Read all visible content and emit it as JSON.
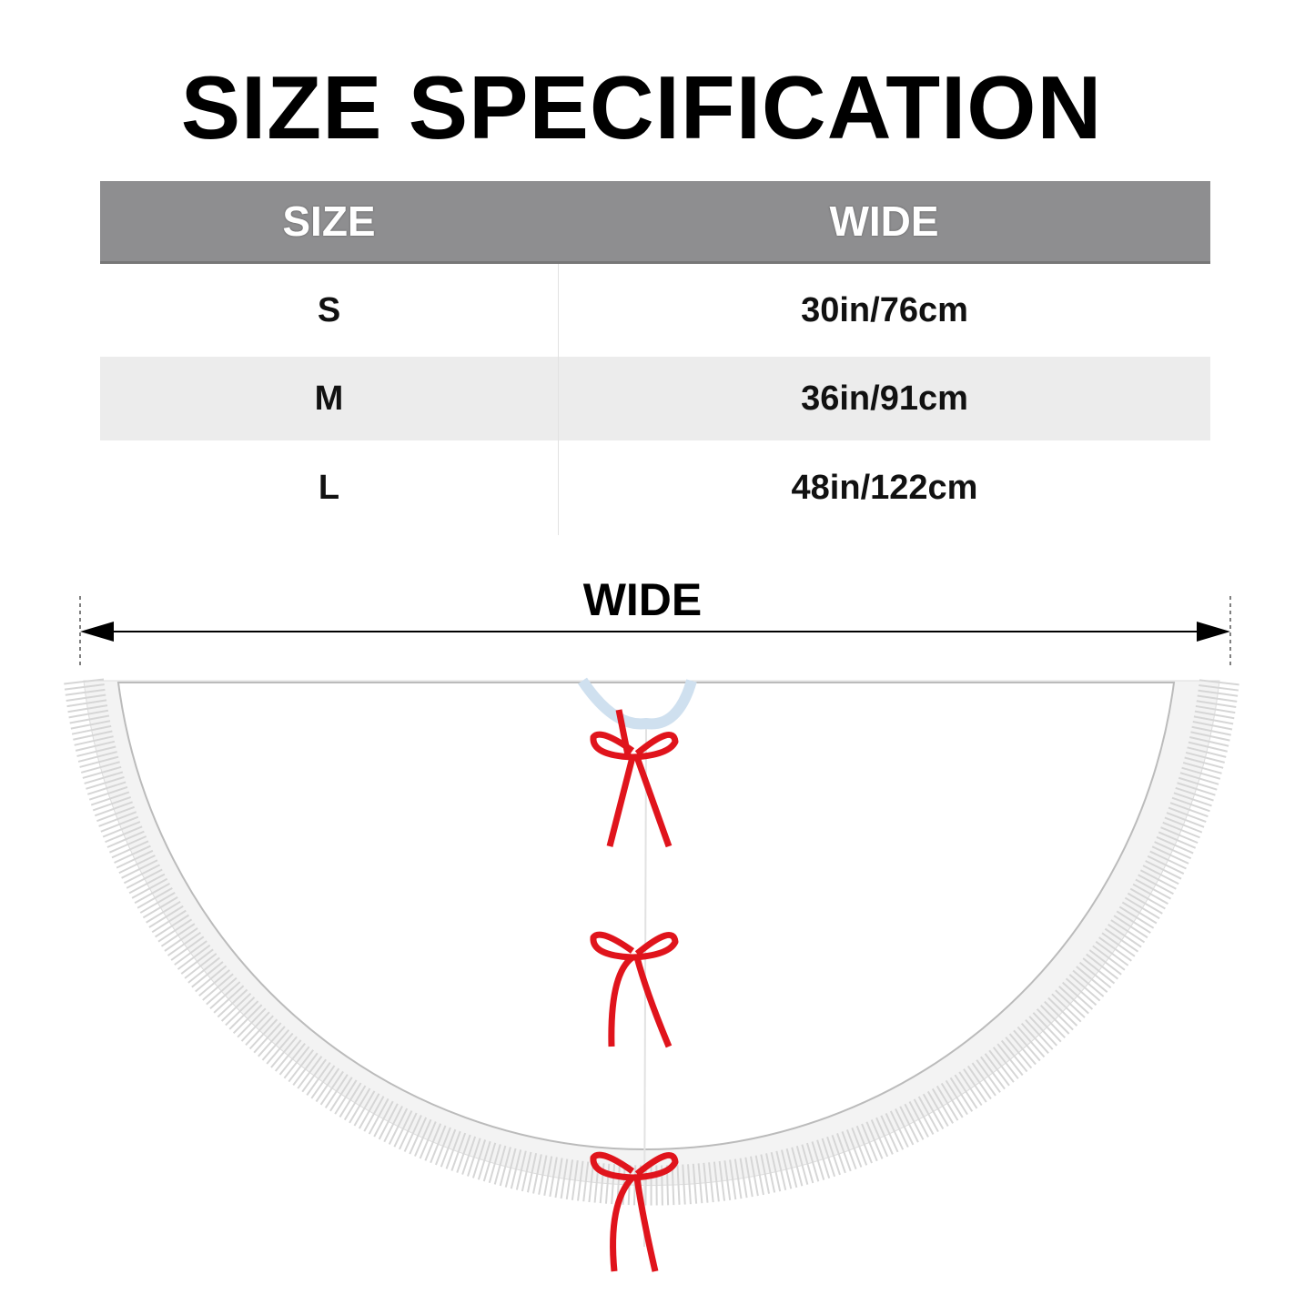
{
  "title": "SIZE SPECIFICATION",
  "table": {
    "headers": [
      "SIZE",
      "WIDE"
    ],
    "rows": [
      {
        "size": "S",
        "wide": "30in/76cm"
      },
      {
        "size": "M",
        "wide": "36in/91cm"
      },
      {
        "size": "L",
        "wide": "48in/122cm"
      }
    ]
  },
  "diagram": {
    "dimension_label": "WIDE",
    "ribbon_color": "#e0141c",
    "header_color": "#8e8e90"
  }
}
